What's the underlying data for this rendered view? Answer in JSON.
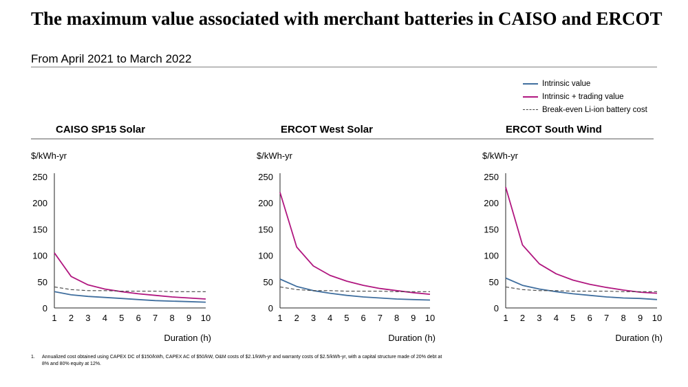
{
  "title": "The maximum value associated with merchant batteries in CAISO and ERCOT",
  "subtitle": "From April 2021 to March 2022",
  "legend": [
    {
      "label": "Intrinsic value",
      "color": "#3f6e9e",
      "style": "solid"
    },
    {
      "label": "Intrinsic + trading value",
      "color": "#b0167f",
      "style": "solid"
    },
    {
      "label": "Break-even Li-ion battery cost",
      "color": "#444444",
      "style": "dashed"
    }
  ],
  "chart_data": [
    {
      "type": "line",
      "title": "CAISO SP15 Solar",
      "ylabel": "$/kWh-yr",
      "xlabel": "Duration (h)",
      "x": [
        1,
        2,
        3,
        4,
        5,
        6,
        7,
        8,
        9,
        10
      ],
      "ylim": [
        0,
        250
      ],
      "yticks": [
        0,
        50,
        100,
        150,
        200,
        250
      ],
      "grid": false,
      "series": [
        {
          "name": "Intrinsic value",
          "color": "#3f6e9e",
          "dash": false,
          "values": [
            31,
            25,
            22,
            20,
            18,
            16,
            14,
            13,
            12,
            11
          ]
        },
        {
          "name": "Intrinsic + trading value",
          "color": "#b0167f",
          "dash": false,
          "values": [
            105,
            60,
            44,
            36,
            31,
            27,
            24,
            21,
            19,
            17
          ]
        },
        {
          "name": "Break-even Li-ion battery cost",
          "color": "#444444",
          "dash": true,
          "values": [
            40,
            35,
            33,
            33,
            32,
            32,
            32,
            31,
            31,
            31
          ]
        }
      ]
    },
    {
      "type": "line",
      "title": "ERCOT West Solar",
      "ylabel": "$/kWh-yr",
      "xlabel": "Duration (h)",
      "x": [
        1,
        2,
        3,
        4,
        5,
        6,
        7,
        8,
        9,
        10
      ],
      "ylim": [
        0,
        250
      ],
      "yticks": [
        0,
        50,
        100,
        150,
        200,
        250
      ],
      "grid": false,
      "series": [
        {
          "name": "Intrinsic value",
          "color": "#3f6e9e",
          "dash": false,
          "values": [
            55,
            41,
            33,
            28,
            24,
            21,
            19,
            17,
            16,
            15
          ]
        },
        {
          "name": "Intrinsic + trading value",
          "color": "#b0167f",
          "dash": false,
          "values": [
            220,
            116,
            80,
            62,
            51,
            43,
            37,
            33,
            29,
            26
          ]
        },
        {
          "name": "Break-even Li-ion battery cost",
          "color": "#444444",
          "dash": true,
          "values": [
            40,
            35,
            33,
            33,
            32,
            32,
            32,
            31,
            31,
            31
          ]
        }
      ]
    },
    {
      "type": "line",
      "title": "ERCOT South Wind",
      "ylabel": "$/kWh-yr",
      "xlabel": "Duration (h)",
      "x": [
        1,
        2,
        3,
        4,
        5,
        6,
        7,
        8,
        9,
        10
      ],
      "ylim": [
        0,
        250
      ],
      "yticks": [
        0,
        50,
        100,
        150,
        200,
        250
      ],
      "grid": false,
      "series": [
        {
          "name": "Intrinsic value",
          "color": "#3f6e9e",
          "dash": false,
          "values": [
            57,
            43,
            36,
            31,
            27,
            24,
            21,
            19,
            18,
            16
          ]
        },
        {
          "name": "Intrinsic + trading value",
          "color": "#b0167f",
          "dash": false,
          "values": [
            230,
            120,
            84,
            65,
            53,
            45,
            39,
            34,
            30,
            28
          ]
        },
        {
          "name": "Break-even Li-ion battery cost",
          "color": "#444444",
          "dash": true,
          "values": [
            40,
            35,
            33,
            33,
            32,
            32,
            32,
            31,
            31,
            31
          ]
        }
      ]
    }
  ],
  "footnote": {
    "number": "1.",
    "text": "Annualized cost obtained using CAPEX DC of $150/kWh, CAPEX AC of $50/kW, O&M costs of $2.1/kWh-yr and warranty costs of $2.5/kWh-yr, with a capital structure made of 20% debt at 8% and 80% equity at 12%."
  }
}
